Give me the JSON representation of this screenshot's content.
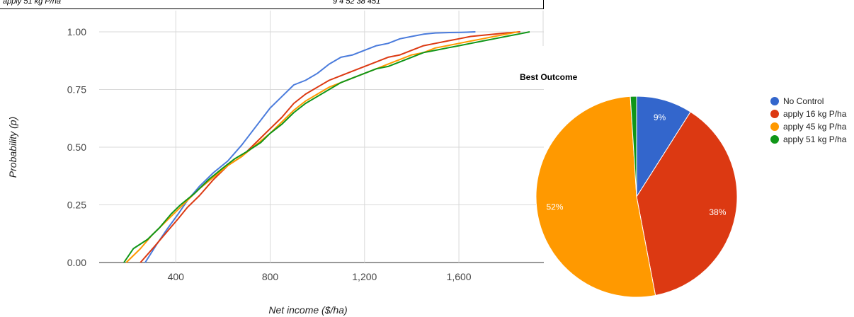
{
  "top_panel": {
    "left_text": "apply 51 kg P/ha",
    "right_text": "9     4     52     38     451"
  },
  "chart_data": [
    {
      "type": "line",
      "title": "",
      "xlabel": "Net income ($/ha)",
      "ylabel": "Probability (p)",
      "xlim": [
        0,
        1900
      ],
      "ylim": [
        0,
        1.0
      ],
      "x_ticks": [
        "400",
        "800",
        "1,200",
        "1,600"
      ],
      "y_ticks": [
        "0.00",
        "0.25",
        "0.50",
        "0.75",
        "1.00"
      ],
      "grid": true,
      "series": [
        {
          "name": "No Control",
          "color": "#4a7bdc",
          "points": [
            [
              270,
              0
            ],
            [
              320,
              0.08
            ],
            [
              360,
              0.14
            ],
            [
              410,
              0.21
            ],
            [
              450,
              0.27
            ],
            [
              500,
              0.33
            ],
            [
              560,
              0.39
            ],
            [
              620,
              0.44
            ],
            [
              680,
              0.51
            ],
            [
              740,
              0.59
            ],
            [
              800,
              0.67
            ],
            [
              850,
              0.72
            ],
            [
              900,
              0.77
            ],
            [
              950,
              0.79
            ],
            [
              1000,
              0.82
            ],
            [
              1050,
              0.86
            ],
            [
              1100,
              0.89
            ],
            [
              1150,
              0.9
            ],
            [
              1200,
              0.92
            ],
            [
              1250,
              0.94
            ],
            [
              1300,
              0.95
            ],
            [
              1350,
              0.97
            ],
            [
              1400,
              0.98
            ],
            [
              1450,
              0.99
            ],
            [
              1500,
              0.995
            ],
            [
              1560,
              0.997
            ],
            [
              1610,
              0.998
            ],
            [
              1670,
              1.0
            ]
          ]
        },
        {
          "name": "apply 16 kg P/ha",
          "color": "#dc3912",
          "points": [
            [
              250,
              0
            ],
            [
              310,
              0.07
            ],
            [
              360,
              0.13
            ],
            [
              410,
              0.19
            ],
            [
              450,
              0.24
            ],
            [
              500,
              0.29
            ],
            [
              560,
              0.36
            ],
            [
              620,
              0.42
            ],
            [
              680,
              0.46
            ],
            [
              740,
              0.52
            ],
            [
              800,
              0.58
            ],
            [
              850,
              0.63
            ],
            [
              900,
              0.69
            ],
            [
              950,
              0.73
            ],
            [
              1000,
              0.76
            ],
            [
              1050,
              0.79
            ],
            [
              1100,
              0.81
            ],
            [
              1150,
              0.83
            ],
            [
              1200,
              0.85
            ],
            [
              1250,
              0.87
            ],
            [
              1300,
              0.89
            ],
            [
              1350,
              0.9
            ],
            [
              1400,
              0.92
            ],
            [
              1450,
              0.94
            ],
            [
              1500,
              0.95
            ],
            [
              1550,
              0.96
            ],
            [
              1600,
              0.97
            ],
            [
              1650,
              0.98
            ],
            [
              1700,
              0.985
            ],
            [
              1750,
              0.99
            ],
            [
              1800,
              0.995
            ],
            [
              1860,
              1.0
            ]
          ]
        },
        {
          "name": "apply 45 kg P/ha",
          "color": "#ff9900",
          "points": [
            [
              190,
              0
            ],
            [
              250,
              0.06
            ],
            [
              300,
              0.12
            ],
            [
              350,
              0.17
            ],
            [
              400,
              0.22
            ],
            [
              450,
              0.27
            ],
            [
              500,
              0.32
            ],
            [
              560,
              0.37
            ],
            [
              620,
              0.42
            ],
            [
              680,
              0.46
            ],
            [
              740,
              0.51
            ],
            [
              800,
              0.56
            ],
            [
              850,
              0.61
            ],
            [
              900,
              0.66
            ],
            [
              950,
              0.7
            ],
            [
              1000,
              0.73
            ],
            [
              1050,
              0.76
            ],
            [
              1100,
              0.78
            ],
            [
              1150,
              0.8
            ],
            [
              1200,
              0.82
            ],
            [
              1250,
              0.84
            ],
            [
              1300,
              0.86
            ],
            [
              1350,
              0.88
            ],
            [
              1400,
              0.9
            ],
            [
              1450,
              0.91
            ],
            [
              1500,
              0.93
            ],
            [
              1550,
              0.94
            ],
            [
              1600,
              0.95
            ],
            [
              1650,
              0.96
            ],
            [
              1700,
              0.97
            ],
            [
              1750,
              0.98
            ],
            [
              1800,
              0.99
            ],
            [
              1850,
              1.0
            ]
          ]
        },
        {
          "name": "apply 51 kg P/ha",
          "color": "#109618",
          "points": [
            [
              180,
              0
            ],
            [
              220,
              0.06
            ],
            [
              280,
              0.1
            ],
            [
              330,
              0.15
            ],
            [
              380,
              0.21
            ],
            [
              420,
              0.25
            ],
            [
              480,
              0.3
            ],
            [
              540,
              0.36
            ],
            [
              600,
              0.41
            ],
            [
              650,
              0.45
            ],
            [
              700,
              0.48
            ],
            [
              760,
              0.52
            ],
            [
              800,
              0.56
            ],
            [
              850,
              0.6
            ],
            [
              900,
              0.65
            ],
            [
              950,
              0.69
            ],
            [
              1000,
              0.72
            ],
            [
              1050,
              0.75
            ],
            [
              1100,
              0.78
            ],
            [
              1150,
              0.8
            ],
            [
              1200,
              0.82
            ],
            [
              1250,
              0.84
            ],
            [
              1300,
              0.85
            ],
            [
              1350,
              0.87
            ],
            [
              1400,
              0.89
            ],
            [
              1450,
              0.91
            ],
            [
              1500,
              0.92
            ],
            [
              1550,
              0.93
            ],
            [
              1600,
              0.94
            ],
            [
              1650,
              0.95
            ],
            [
              1700,
              0.96
            ],
            [
              1750,
              0.97
            ],
            [
              1800,
              0.98
            ],
            [
              1850,
              0.99
            ],
            [
              1900,
              1.0
            ]
          ]
        }
      ]
    },
    {
      "type": "pie",
      "title": "Best Outcome",
      "slices": [
        {
          "name": "No Control",
          "value": 9,
          "label": "9%",
          "color": "#3366cc"
        },
        {
          "name": "apply 16 kg P/ha",
          "value": 38,
          "label": "38%",
          "color": "#dc3912"
        },
        {
          "name": "apply 45 kg P/ha",
          "value": 52,
          "label": "52%",
          "color": "#ff9900"
        },
        {
          "name": "apply 51 kg P/ha",
          "value": 1,
          "label": "",
          "color": "#109618"
        }
      ],
      "legend_position": "right"
    }
  ]
}
